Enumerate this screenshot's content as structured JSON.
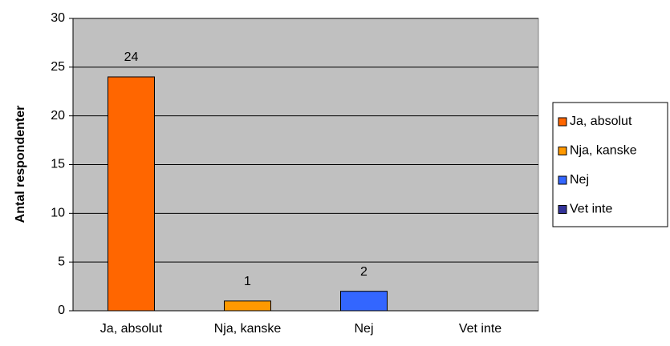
{
  "chart_data": {
    "type": "bar",
    "y_label": "Antal respondenter",
    "categories": [
      "Ja, absolut",
      "Nja, kanske",
      "Nej",
      "Vet inte"
    ],
    "values": [
      24,
      1,
      2,
      0
    ],
    "colors": [
      "#ff6600",
      "#ff9900",
      "#3366ff",
      "#333399"
    ],
    "ylim": [
      0,
      30
    ],
    "yticks": [
      0,
      5,
      10,
      15,
      20,
      25,
      30
    ],
    "grid": true,
    "legend": "right"
  }
}
